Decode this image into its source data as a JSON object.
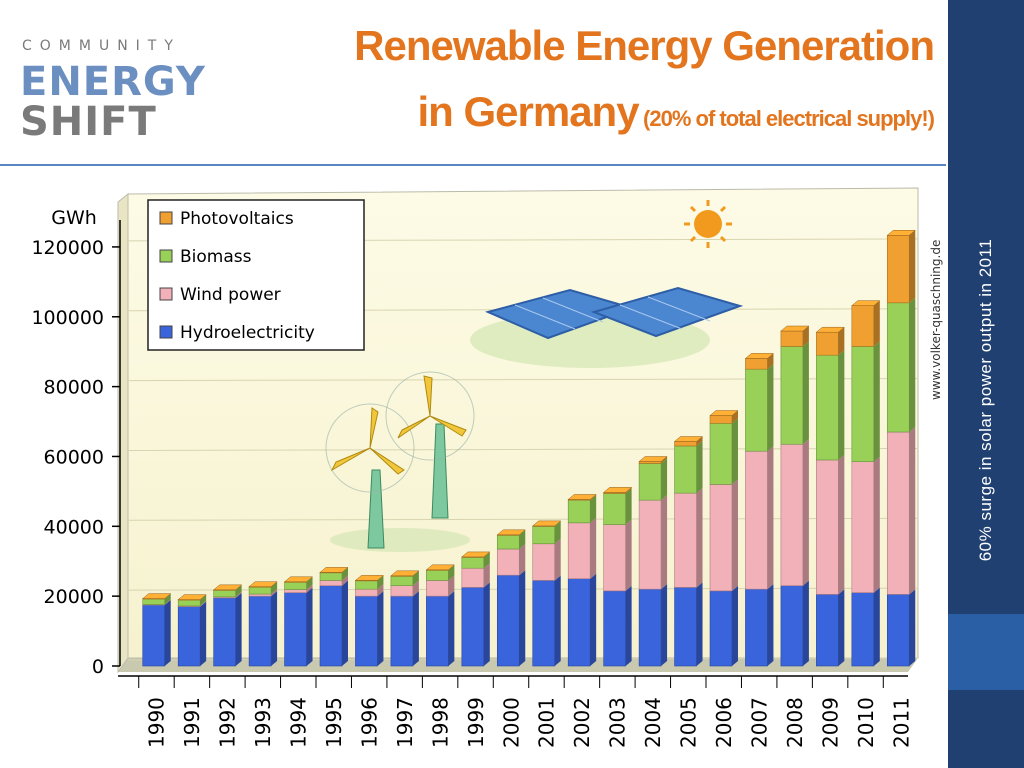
{
  "slide": {
    "logo": {
      "line1": "COMMUNITY",
      "line2": "ENERGY",
      "line3": "SHIFT"
    },
    "title": {
      "line1": "Renewable Energy Generation",
      "line2": "in Germany",
      "subtitle": "(20% of total electrical supply!)"
    },
    "sidebar_note": "60% surge in solar power output in 2011",
    "colors": {
      "title": "#e2751e",
      "sidebar": "#1f4070",
      "accent": "#2a5fa6",
      "divider": "#5b86c4"
    }
  },
  "chart_data": {
    "type": "bar",
    "stacked": true,
    "ylabel": "GWh",
    "ylim": [
      0,
      130000
    ],
    "yticks": [
      0,
      20000,
      40000,
      60000,
      80000,
      100000,
      120000
    ],
    "watermark": "www.volker-quaschning.de",
    "legend_position": "top-left",
    "categories": [
      "1990",
      "1991",
      "1992",
      "1993",
      "1994",
      "1995",
      "1996",
      "1997",
      "1998",
      "1999",
      "2000",
      "2001",
      "2002",
      "2003",
      "2004",
      "2005",
      "2006",
      "2007",
      "2008",
      "2009",
      "2010",
      "2011"
    ],
    "series": [
      {
        "name": "Hydroelectricity",
        "color": "#3a64dc",
        "values": [
          17500,
          17000,
          19500,
          20000,
          21000,
          23000,
          20000,
          20000,
          20000,
          22500,
          26000,
          24500,
          25000,
          21500,
          22000,
          22500,
          21500,
          22000,
          23000,
          20500,
          21000,
          20500
        ]
      },
      {
        "name": "Wind power",
        "color": "#f2b0b8",
        "values": [
          100,
          200,
          300,
          600,
          900,
          1500,
          2000,
          3000,
          4500,
          5500,
          7500,
          10500,
          16000,
          19000,
          25500,
          27000,
          30500,
          39500,
          40500,
          38500,
          37500,
          46500
        ]
      },
      {
        "name": "Biomass",
        "color": "#98d058",
        "values": [
          1700,
          1800,
          2000,
          2100,
          2200,
          2300,
          2500,
          2800,
          3000,
          3200,
          4000,
          5000,
          6500,
          8900,
          10500,
          13500,
          17500,
          23500,
          28000,
          30000,
          33000,
          37000
        ]
      },
      {
        "name": "Photovoltaics",
        "color": "#f0a030",
        "values": [
          1,
          2,
          4,
          3,
          7,
          7,
          12,
          18,
          35,
          30,
          60,
          116,
          188,
          313,
          557,
          1282,
          2220,
          3075,
          4420,
          6583,
          11683,
          19340
        ]
      }
    ]
  }
}
